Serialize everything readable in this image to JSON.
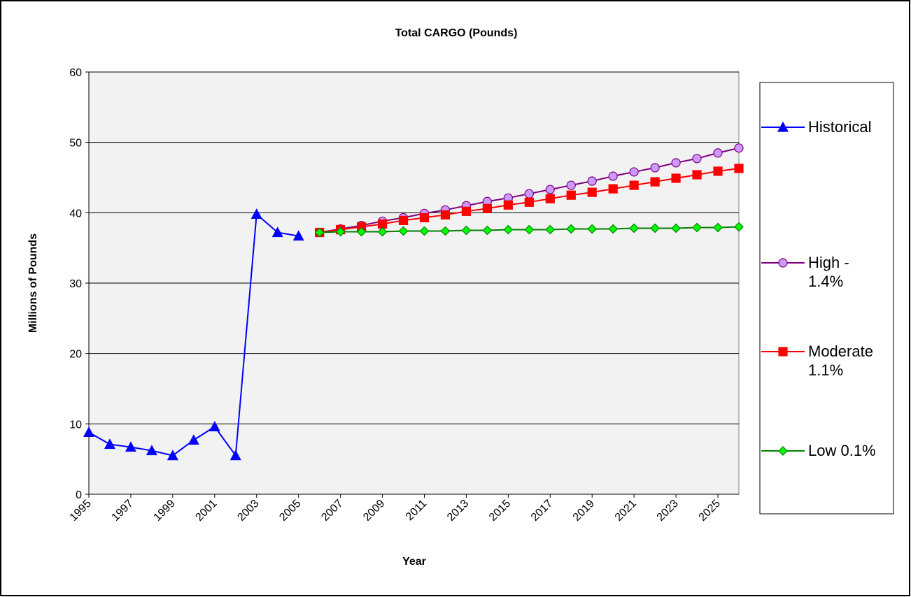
{
  "chart_data": {
    "type": "line",
    "title": "Total CARGO (Pounds)",
    "x_label": "Year",
    "y_label": "Millions of Pounds",
    "x": [
      1995,
      1996,
      1997,
      1998,
      1999,
      2000,
      2001,
      2002,
      2003,
      2004,
      2005,
      2006,
      2007,
      2008,
      2009,
      2010,
      2011,
      2012,
      2013,
      2014,
      2015,
      2016,
      2017,
      2018,
      2019,
      2020,
      2021,
      2022,
      2023,
      2024,
      2025,
      2026
    ],
    "xlim": [
      1995,
      2026
    ],
    "xticks": [
      1995,
      1997,
      1999,
      2001,
      2003,
      2005,
      2007,
      2009,
      2011,
      2013,
      2015,
      2017,
      2019,
      2021,
      2023,
      2025
    ],
    "ylim": [
      0,
      60
    ],
    "yticks": [
      0,
      10,
      20,
      30,
      40,
      50,
      60
    ],
    "grid": true,
    "legend": "right",
    "series": [
      {
        "name": "Historical",
        "color": "#0000ff",
        "marker": "triangle",
        "marker_fill": "#0000ff",
        "values": [
          8.8,
          7.1,
          6.7,
          6.2,
          5.5,
          7.7,
          9.6,
          5.5,
          39.8,
          37.2,
          36.7,
          null,
          null,
          null,
          null,
          null,
          null,
          null,
          null,
          null,
          null,
          null,
          null,
          null,
          null,
          null,
          null,
          null,
          null,
          null,
          null,
          null
        ]
      },
      {
        "name": "High - 1.4%",
        "color": "#800080",
        "marker": "circle",
        "marker_fill": "#cc99ff",
        "values": [
          null,
          null,
          null,
          null,
          null,
          null,
          null,
          null,
          null,
          null,
          null,
          37.2,
          37.7,
          38.2,
          38.8,
          39.3,
          39.9,
          40.4,
          41.0,
          41.6,
          42.1,
          42.7,
          43.3,
          43.9,
          44.5,
          45.2,
          45.8,
          46.4,
          47.1,
          47.7,
          48.5,
          49.2
        ]
      },
      {
        "name": "Moderate 1.1%",
        "color": "#ff0000",
        "marker": "square",
        "marker_fill": "#ff0000",
        "values": [
          null,
          null,
          null,
          null,
          null,
          null,
          null,
          null,
          null,
          null,
          null,
          37.2,
          37.6,
          38.0,
          38.4,
          38.9,
          39.3,
          39.7,
          40.2,
          40.6,
          41.1,
          41.5,
          42.0,
          42.5,
          42.9,
          43.4,
          43.9,
          44.4,
          44.9,
          45.4,
          45.9,
          46.3
        ]
      },
      {
        "name": "Low 0.1%",
        "color": "#008000",
        "marker": "diamond",
        "marker_fill": "#00ff00",
        "values": [
          null,
          null,
          null,
          null,
          null,
          null,
          null,
          null,
          null,
          null,
          null,
          37.2,
          37.3,
          37.3,
          37.3,
          37.4,
          37.4,
          37.4,
          37.5,
          37.5,
          37.6,
          37.6,
          37.6,
          37.7,
          37.7,
          37.7,
          37.8,
          37.8,
          37.8,
          37.9,
          37.9,
          38.0
        ]
      }
    ]
  }
}
